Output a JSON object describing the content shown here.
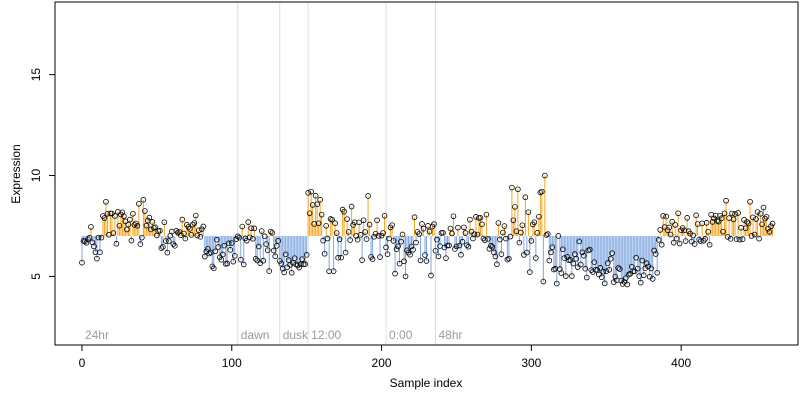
{
  "chart_data": {
    "type": "scatter",
    "title": "",
    "xlabel": "Sample index",
    "ylabel": "Expression",
    "xlim": [
      -18,
      478
    ],
    "ylim": [
      1.6,
      18.6
    ],
    "x_ticks": [
      0,
      100,
      200,
      300,
      400
    ],
    "y_ticks": [
      5,
      10,
      15
    ],
    "baseline": 7.0,
    "colors": {
      "above": "#f5a623",
      "below": "#7ea6e0",
      "phase_line": "#dddddd",
      "phase_label": "#9a9a9a",
      "point": "#000000"
    },
    "phase_markers": [
      {
        "label": "24hr",
        "x": 0
      },
      {
        "label": "dawn",
        "x": 104
      },
      {
        "label": "dusk",
        "x": 132
      },
      {
        "label": "12:00",
        "x": 151
      },
      {
        "label": "0:00",
        "x": 203
      },
      {
        "label": "48hr",
        "x": 236
      }
    ],
    "segments": [
      {
        "start": 0,
        "end": 14,
        "mean": 6.6,
        "amp": 0.5
      },
      {
        "start": 14,
        "end": 50,
        "mean": 7.5,
        "amp": 0.55
      },
      {
        "start": 50,
        "end": 82,
        "mean": 7.2,
        "amp": 0.45
      },
      {
        "start": 82,
        "end": 104,
        "mean": 6.3,
        "amp": 0.55
      },
      {
        "start": 104,
        "end": 132,
        "mean": 6.5,
        "amp": 0.75
      },
      {
        "start": 132,
        "end": 151,
        "mean": 5.6,
        "amp": 0.3
      },
      {
        "start": 151,
        "end": 160,
        "mean": 8.3,
        "amp": 0.9
      },
      {
        "start": 160,
        "end": 203,
        "mean": 6.8,
        "amp": 0.85
      },
      {
        "start": 203,
        "end": 236,
        "mean": 6.5,
        "amp": 0.8
      },
      {
        "start": 236,
        "end": 285,
        "mean": 6.9,
        "amp": 0.6
      },
      {
        "start": 285,
        "end": 312,
        "mean": 7.1,
        "amp": 1.1
      },
      {
        "start": 312,
        "end": 340,
        "mean": 6.1,
        "amp": 0.7
      },
      {
        "start": 340,
        "end": 385,
        "mean": 5.4,
        "amp": 0.5
      },
      {
        "start": 385,
        "end": 420,
        "mean": 7.2,
        "amp": 0.45
      },
      {
        "start": 420,
        "end": 462,
        "mean": 7.7,
        "amp": 0.45
      }
    ],
    "highlights": [
      {
        "x": 16,
        "y": 8.7
      },
      {
        "x": 41,
        "y": 8.8
      },
      {
        "x": 88,
        "y": 5.4
      },
      {
        "x": 153,
        "y": 9.2
      },
      {
        "x": 156,
        "y": 9.0
      },
      {
        "x": 159,
        "y": 8.8
      },
      {
        "x": 216,
        "y": 5.0
      },
      {
        "x": 287,
        "y": 9.4
      },
      {
        "x": 307,
        "y": 9.2
      },
      {
        "x": 309,
        "y": 10.0
      },
      {
        "x": 364,
        "y": 4.6
      },
      {
        "x": 388,
        "y": 8.0
      },
      {
        "x": 446,
        "y": 8.7
      }
    ]
  }
}
